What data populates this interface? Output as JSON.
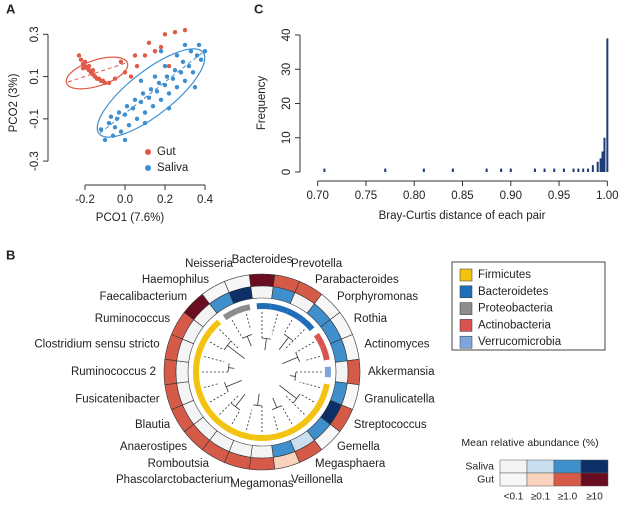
{
  "chart_data": [
    {
      "type": "scatter",
      "panel": "A",
      "xlabel": "PCO1 (7.6%)",
      "ylabel": "PCO2 (3%)",
      "xlim": [
        -0.35,
        0.45
      ],
      "ylim": [
        -0.38,
        0.33
      ],
      "xticks": [
        -0.2,
        {
          "value": 0,
          "label": "0.0"
        },
        0.2,
        0.4
      ],
      "yticks": [
        -0.3,
        -0.1,
        0.1,
        0.3
      ],
      "series": [
        {
          "name": "Gut",
          "color": "#e05a47",
          "x": [
            -0.22,
            -0.21,
            -0.2,
            -0.19,
            -0.18,
            -0.17,
            -0.16,
            -0.15,
            -0.14,
            -0.13,
            -0.12,
            -0.11,
            -0.2,
            -0.18,
            -0.16,
            -0.23,
            -0.21,
            -0.1,
            -0.08,
            -0.05,
            0.0,
            0.03,
            0.06,
            0.1,
            0.15,
            0.12,
            0.2,
            0.25,
            0.3,
            0.22,
            0.05,
            -0.02,
            0.18
          ],
          "values": [
            0.18,
            0.16,
            0.15,
            0.14,
            0.13,
            0.12,
            0.11,
            0.1,
            0.09,
            0.09,
            0.08,
            0.08,
            0.17,
            0.15,
            0.13,
            0.2,
            0.14,
            0.07,
            0.07,
            0.09,
            0.12,
            0.1,
            0.15,
            0.2,
            0.22,
            0.26,
            0.3,
            0.31,
            0.32,
            0.15,
            0.2,
            0.17,
            0.24
          ]
        },
        {
          "name": "Saliva",
          "color": "#3d8fd1",
          "x": [
            -0.12,
            -0.1,
            -0.08,
            -0.06,
            -0.04,
            -0.02,
            0.0,
            0.02,
            0.04,
            0.06,
            0.08,
            0.1,
            0.12,
            0.14,
            0.16,
            0.18,
            0.2,
            0.22,
            0.24,
            0.26,
            0.28,
            0.3,
            0.32,
            0.34,
            0.36,
            0.38,
            0.37,
            0.4,
            0.33,
            0.29,
            0.25,
            0.21,
            0.17,
            0.13,
            0.09,
            0.05,
            0.01,
            -0.03,
            -0.07,
            0.1,
            0.0,
            0.15,
            0.2,
            0.35,
            0.3,
            0.18,
            0.26,
            -0.05,
            0.08,
            0.22
          ],
          "values": [
            -0.15,
            -0.2,
            -0.12,
            -0.18,
            -0.1,
            -0.16,
            -0.08,
            -0.13,
            -0.05,
            -0.1,
            -0.02,
            -0.07,
            0.0,
            -0.04,
            0.03,
            -0.01,
            0.06,
            0.02,
            0.09,
            0.05,
            0.12,
            0.08,
            0.15,
            0.12,
            0.2,
            0.18,
            0.25,
            0.22,
            0.22,
            0.17,
            0.13,
            0.1,
            0.07,
            0.04,
            0.02,
            -0.01,
            -0.04,
            -0.07,
            -0.09,
            -0.12,
            -0.2,
            0.1,
            0.15,
            0.05,
            0.25,
            0.22,
            0.2,
            -0.14,
            0.08,
            -0.05
          ]
        }
      ]
    },
    {
      "type": "bar",
      "panel": "C",
      "xlabel": "Bray-Curtis distance of each pair",
      "ylabel": "Frequency",
      "xlim": [
        0.69,
        1.01
      ],
      "ylim": [
        0,
        40
      ],
      "color": "#1d3c78",
      "xticks": [
        {
          "value": 0.7,
          "label": "0.70"
        },
        0.75,
        {
          "value": 0.8,
          "label": "0.80"
        },
        0.85,
        {
          "value": 0.9,
          "label": "0.90"
        },
        0.95,
        {
          "value": 1,
          "label": "1.00"
        }
      ],
      "yticks": [
        0,
        10,
        20,
        30,
        40
      ],
      "x": [
        0.707,
        0.77,
        0.81,
        0.84,
        0.875,
        0.89,
        0.9,
        0.925,
        0.935,
        0.945,
        0.955,
        0.965,
        0.97,
        0.975,
        0.98,
        0.985,
        0.99,
        0.993,
        0.995,
        0.997,
        1.0
      ],
      "values": [
        1,
        1,
        1,
        1,
        1,
        1,
        1,
        1,
        1,
        1,
        1,
        1,
        1,
        1,
        1,
        2,
        3,
        4,
        6,
        10,
        39
      ]
    },
    {
      "type": "circular-heatmap",
      "panel": "B",
      "phyla": [
        {
          "name": "Firmicutes",
          "color": "#f2c40f"
        },
        {
          "name": "Bacteroidetes",
          "color": "#1f6fb8"
        },
        {
          "name": "Proteobacteria",
          "color": "#8c8c8c"
        },
        {
          "name": "Actinobacteria",
          "color": "#d9534f"
        },
        {
          "name": "Verrucomicrobia",
          "color": "#7ea6dd"
        }
      ],
      "scale": {
        "title": "Mean relative abundance (%)",
        "labels": [
          "<0.1",
          "≥0.1",
          "≥1.0",
          "≥10"
        ],
        "rows": [
          {
            "name": "Saliva",
            "colors": [
              "#f4f4f4",
              "#c9deef",
              "#3f8fcc",
              "#0b2f66"
            ]
          },
          {
            "name": "Gut",
            "colors": [
              "#f7f7f7",
              "#f9d3bd",
              "#d65a48",
              "#6b0d22"
            ]
          }
        ]
      },
      "genera": [
        {
          "name": "Bacteroides",
          "phylum": 1,
          "saliva": 0,
          "gut": 3
        },
        {
          "name": "Prevotella",
          "phylum": 1,
          "saliva": 2,
          "gut": 2
        },
        {
          "name": "Parabacteroides",
          "phylum": 1,
          "saliva": 0,
          "gut": 2
        },
        {
          "name": "Porphyromonas",
          "phylum": 1,
          "saliva": 2,
          "gut": 0
        },
        {
          "name": "Rothia",
          "phylum": 3,
          "saliva": 2,
          "gut": 0
        },
        {
          "name": "Actinomyces",
          "phylum": 3,
          "saliva": 2,
          "gut": 0
        },
        {
          "name": "Akkermansia",
          "phylum": 4,
          "saliva": 0,
          "gut": 2
        },
        {
          "name": "Granulicatella",
          "phylum": 0,
          "saliva": 2,
          "gut": 0
        },
        {
          "name": "Streptococcus",
          "phylum": 0,
          "saliva": 3,
          "gut": 2
        },
        {
          "name": "Gemella",
          "phylum": 0,
          "saliva": 2,
          "gut": 0
        },
        {
          "name": "Megasphaera",
          "phylum": 0,
          "saliva": 1,
          "gut": 2
        },
        {
          "name": "Veillonella",
          "phylum": 0,
          "saliva": 2,
          "gut": 1
        },
        {
          "name": "Megamonas",
          "phylum": 0,
          "saliva": 0,
          "gut": 2
        },
        {
          "name": "Phascolarctobacterium",
          "phylum": 0,
          "saliva": 0,
          "gut": 2
        },
        {
          "name": "Romboutsia",
          "phylum": 0,
          "saliva": 0,
          "gut": 2
        },
        {
          "name": "Anaerostipes",
          "phylum": 0,
          "saliva": 0,
          "gut": 2
        },
        {
          "name": "Blautia",
          "phylum": 0,
          "saliva": 0,
          "gut": 2
        },
        {
          "name": "Fusicatenibacter",
          "phylum": 0,
          "saliva": 0,
          "gut": 2
        },
        {
          "name": "Ruminococcus 2",
          "phylum": 0,
          "saliva": 0,
          "gut": 2
        },
        {
          "name": "Clostridium sensu stricto",
          "phylum": 0,
          "saliva": 0,
          "gut": 2
        },
        {
          "name": "Ruminococcus",
          "phylum": 0,
          "saliva": 0,
          "gut": 2
        },
        {
          "name": "Faecalibacterium",
          "phylum": 0,
          "saliva": 0,
          "gut": 3
        },
        {
          "name": "Haemophilus",
          "phylum": 2,
          "saliva": 2,
          "gut": 0
        },
        {
          "name": "Neisseria",
          "phylum": 2,
          "saliva": 3,
          "gut": 0
        }
      ]
    }
  ]
}
